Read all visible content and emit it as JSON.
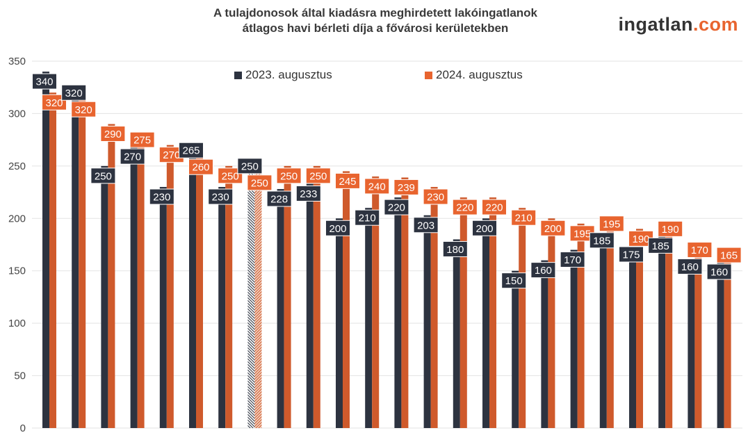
{
  "title": {
    "line1": "A tulajdonosok által kiadásra meghirdetett lakóingatlanok",
    "line2": "átlagos havi bérleti díja a fővárosi kerületekben"
  },
  "brand": {
    "part1": "ingatlan",
    "part2": ".com"
  },
  "colors": {
    "series_2023": "#2d3340",
    "series_2024": "#cf5a2c",
    "label_bg_2024": "#e8642f",
    "grid": "#e3e3e3",
    "axis_text": "#444444"
  },
  "legend": {
    "placement": "top-center"
  },
  "chart_data": {
    "type": "bar",
    "title": "A tulajdonosok által kiadásra meghirdetett lakóingatlanok átlagos havi bérleti díja a fővárosi kerületekben",
    "categories": [
      "",
      "",
      "",
      "",
      "",
      "",
      "",
      "",
      "",
      "",
      "",
      "",
      "",
      "",
      "",
      "",
      "",
      "",
      "",
      "",
      "",
      "",
      "",
      ""
    ],
    "series": [
      {
        "name": "2023. augusztus",
        "values": [
          340,
          320,
          250,
          270,
          230,
          265,
          230,
          250,
          228,
          233,
          200,
          210,
          220,
          203,
          180,
          200,
          150,
          160,
          170,
          185,
          175,
          185,
          160,
          160
        ]
      },
      {
        "name": "2024. augusztus",
        "values": [
          320,
          320,
          290,
          275,
          270,
          260,
          250,
          250,
          250,
          250,
          245,
          240,
          239,
          230,
          220,
          220,
          210,
          200,
          195,
          195,
          190,
          190,
          170,
          165
        ]
      }
    ],
    "ylim": [
      0,
      350
    ],
    "yticks": [
      0,
      50,
      100,
      150,
      200,
      250,
      300,
      350
    ],
    "highlighted_index": 7,
    "grid": true,
    "xlabel": "",
    "ylabel": ""
  }
}
